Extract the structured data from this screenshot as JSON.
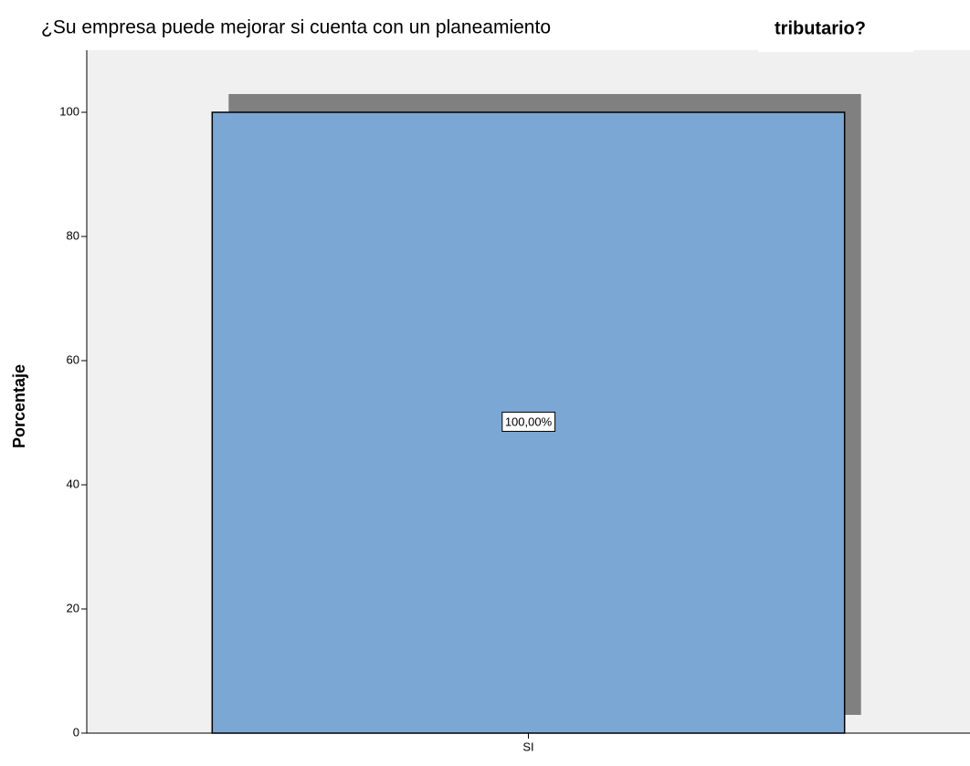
{
  "chart_data": {
    "type": "bar",
    "title": "¿Su empresa puede mejorar si cuenta con un planeamiento",
    "annotation": "tributario?",
    "y_label": "Porcentaje",
    "categories": [
      "SI"
    ],
    "values": [
      100
    ],
    "value_labels": [
      "100,00%"
    ],
    "color": "#7ba7d5",
    "ylim": [
      0,
      110
    ],
    "yticks": [
      0,
      20,
      40,
      60,
      80,
      100
    ],
    "grid": false
  }
}
